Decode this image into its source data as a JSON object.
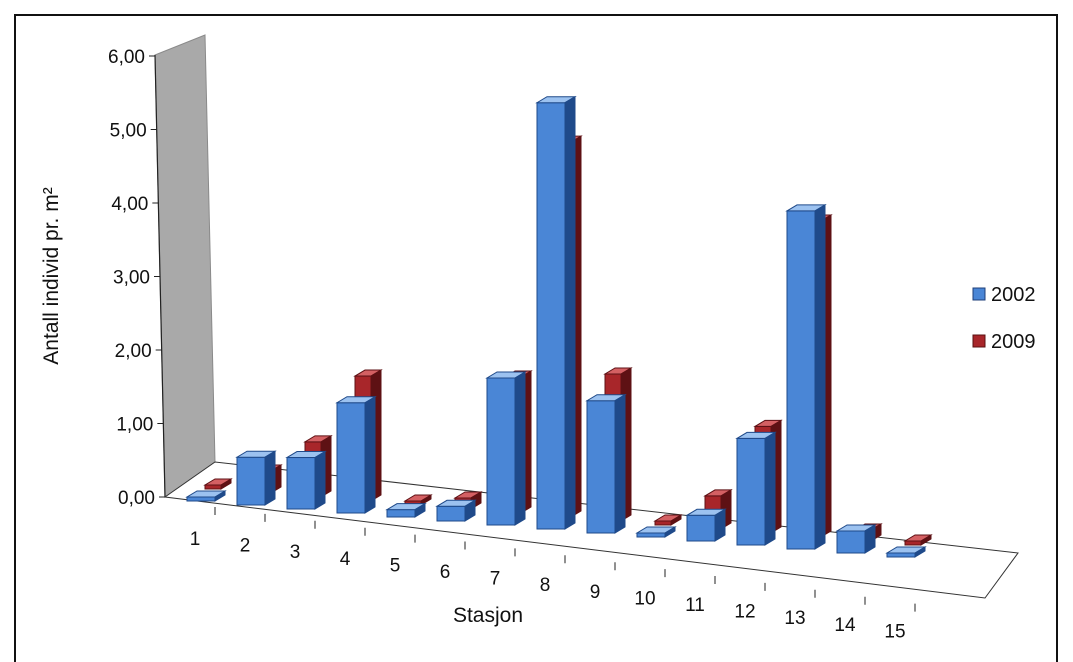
{
  "chart_data": {
    "type": "bar",
    "title": "",
    "xlabel": "Stasjon",
    "ylabel": "Antall individ pr. m²",
    "ylim": [
      0,
      6
    ],
    "yticks": [
      "0,00",
      "1,00",
      "2,00",
      "3,00",
      "4,00",
      "5,00",
      "6,00"
    ],
    "categories": [
      "1",
      "2",
      "3",
      "4",
      "5",
      "6",
      "7",
      "8",
      "9",
      "10",
      "11",
      "12",
      "13",
      "14",
      "15"
    ],
    "series": [
      {
        "name": "2002",
        "values": [
          0.05,
          0.65,
          0.7,
          1.5,
          0.1,
          0.2,
          2.0,
          5.8,
          1.8,
          0.05,
          0.35,
          1.45,
          4.6,
          0.3,
          0.05
        ]
      },
      {
        "name": "2009",
        "values": [
          0.03,
          0.3,
          0.75,
          1.7,
          0.05,
          0.15,
          1.85,
          5.1,
          2.0,
          0.05,
          0.45,
          1.45,
          4.3,
          0.15,
          0.05
        ]
      }
    ],
    "legend_position": "right",
    "colors": {
      "2002": "#4a86d6",
      "2009": "#a8262a"
    },
    "chart_style": "3d-clustered-columns",
    "grid": false
  }
}
